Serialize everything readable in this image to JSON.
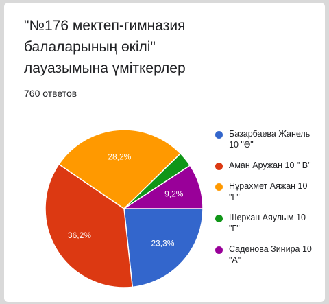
{
  "title": "\"№176 мектеп-гимназия балаларының өкілі\" лауазымына үміткерлер",
  "responses": "760 ответов",
  "chart_data": {
    "type": "pie",
    "title": "\"№176 мектеп-гимназия балаларының өкілі\" лауазымына үміткерлер",
    "slices": [
      {
        "label": "Базарбаева Жанель 10 \"Ә\"",
        "value": 23.3,
        "label_text": "23,3%",
        "color": "#3366cc"
      },
      {
        "label": "Аман Аружан 10 \" В\"",
        "value": 36.2,
        "label_text": "36,2%",
        "color": "#dc3912"
      },
      {
        "label": "Нұрахмет Аяжан 10 \"Г\"",
        "value": 28.2,
        "label_text": "28,2%",
        "color": "#ff9900"
      },
      {
        "label": "Шерхан Аяулым 10 \"Г\"",
        "value": 3.1,
        "label_text": "",
        "color": "#109618"
      },
      {
        "label": "Саденова Зинира 10 \"А\"",
        "value": 9.2,
        "label_text": "9,2%",
        "color": "#990099"
      }
    ]
  }
}
